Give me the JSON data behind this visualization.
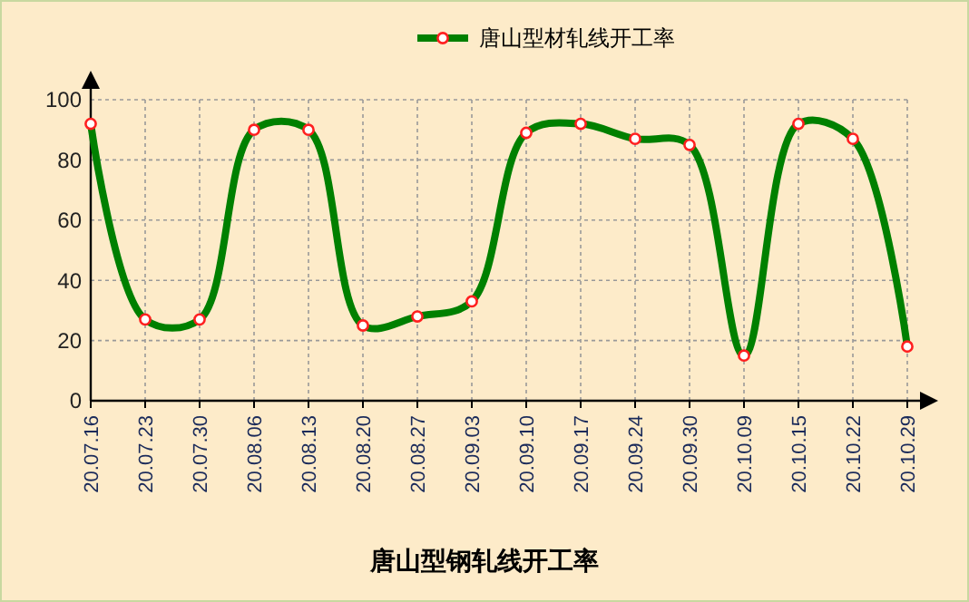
{
  "chart_data": {
    "type": "line",
    "title": "唐山型钢轧线开工率",
    "categories": [
      "20.07.16",
      "20.07.23",
      "20.07.30",
      "20.08.06",
      "20.08.13",
      "20.08.20",
      "20.08.27",
      "20.09.03",
      "20.09.10",
      "20.09.17",
      "20.09.24",
      "20.09.30",
      "20.10.09",
      "20.10.15",
      "20.10.22",
      "20.10.29"
    ],
    "series": [
      {
        "name": "唐山型材轧线开工率",
        "color": "#008000",
        "values": [
          92,
          27,
          27,
          90,
          90,
          25,
          28,
          33,
          89,
          92,
          87,
          85,
          15,
          92,
          87,
          18
        ]
      }
    ],
    "ylim": [
      0,
      100
    ],
    "yticks": [
      0,
      20,
      40,
      60,
      80,
      100
    ],
    "grid": true,
    "legend": "top",
    "marker": "circle",
    "line_style": "solid"
  }
}
